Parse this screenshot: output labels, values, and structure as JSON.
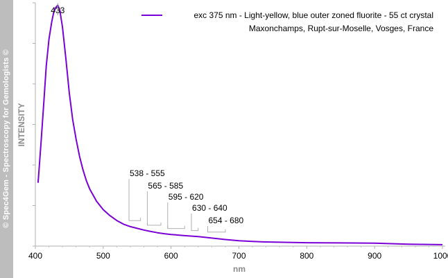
{
  "watermark": "© Spec4Gem - Spectroscopy for Gemologists ©",
  "chart_data": {
    "type": "line",
    "xlabel": "nm",
    "ylabel": "INTENSITY",
    "xlim": [
      400,
      1000
    ],
    "xticks": [
      400,
      500,
      600,
      700,
      800,
      900,
      1000
    ],
    "ylim": [
      0,
      1
    ],
    "y_tick_labels": false,
    "grid": false,
    "legend_position": "top-right",
    "legend": {
      "line1": "exc 375 nm - Light-yellow, blue outer zoned fluorite - 55 ct crystal",
      "line2": "Maxonchamps, Rupt-sur-Moselle, Vosges, France"
    },
    "series": [
      {
        "name": "exc 375 nm - Light-yellow, blue outer zoned fluorite - 55 ct crystal",
        "color": "#7a00d6",
        "x": [
          404,
          408,
          412,
          416,
          420,
          424,
          427,
          430,
          433,
          436,
          440,
          445,
          450,
          455,
          460,
          465,
          470,
          475,
          480,
          490,
          500,
          510,
          520,
          530,
          540,
          550,
          560,
          570,
          580,
          590,
          600,
          620,
          640,
          660,
          680,
          700,
          720,
          740,
          760,
          800,
          850,
          900,
          950,
          1000
        ],
        "y": [
          0.26,
          0.41,
          0.57,
          0.74,
          0.85,
          0.92,
          0.96,
          0.98,
          0.99,
          0.97,
          0.9,
          0.77,
          0.63,
          0.52,
          0.44,
          0.37,
          0.315,
          0.27,
          0.235,
          0.185,
          0.15,
          0.125,
          0.105,
          0.09,
          0.08,
          0.073,
          0.066,
          0.06,
          0.055,
          0.051,
          0.048,
          0.043,
          0.039,
          0.033,
          0.027,
          0.022,
          0.019,
          0.017,
          0.016,
          0.014,
          0.013,
          0.012,
          0.008,
          0.006
        ]
      }
    ],
    "peak_label": {
      "text": "433",
      "x": 433
    },
    "band_labels": [
      {
        "text": "538 - 555",
        "from": 538,
        "to": 555
      },
      {
        "text": "565 - 585",
        "from": 565,
        "to": 585
      },
      {
        "text": "595 - 620",
        "from": 595,
        "to": 620
      },
      {
        "text": "630 - 640",
        "from": 630,
        "to": 640
      },
      {
        "text": "654 - 680",
        "from": 654,
        "to": 680
      }
    ]
  }
}
